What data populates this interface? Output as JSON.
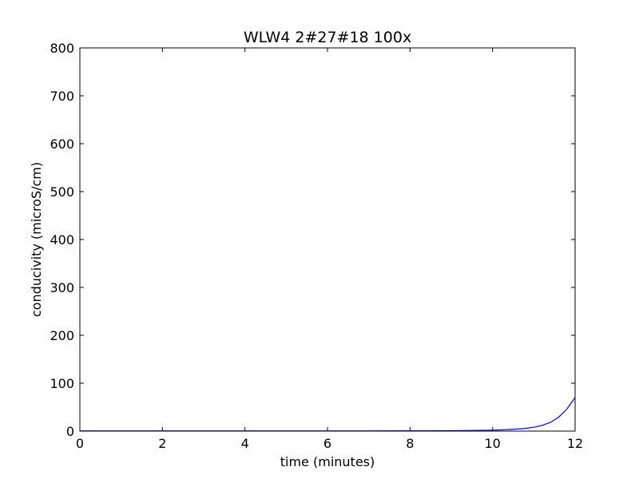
{
  "chart_data": {
    "type": "line",
    "title": "WLW4 2#27#18 100x",
    "xlabel": "time (minutes)",
    "ylabel": "conducivity (microS/cm)",
    "xlim": [
      0,
      12
    ],
    "ylim": [
      0,
      800
    ],
    "xticks": [
      "0",
      "2",
      "4",
      "6",
      "8",
      "10",
      "12"
    ],
    "yticks": [
      "0",
      "100",
      "200",
      "300",
      "400",
      "500",
      "600",
      "700",
      "800"
    ],
    "grid": false,
    "legend": "none",
    "series": [
      {
        "color": "#0000ff",
        "x": [
          0,
          1,
          2,
          3,
          4,
          5,
          6,
          7,
          8,
          8.5,
          9,
          9.5,
          10,
          10.25,
          10.5,
          10.75,
          11,
          11.2,
          11.4,
          11.6,
          11.8,
          12
        ],
        "y": [
          0.5,
          0.5,
          0.5,
          0.5,
          0.5,
          0.5,
          0.5,
          0.5,
          0.6,
          0.7,
          0.9,
          1.3,
          2.0,
          2.7,
          3.7,
          5.2,
          8.0,
          12,
          18,
          29,
          46,
          70
        ]
      }
    ]
  }
}
